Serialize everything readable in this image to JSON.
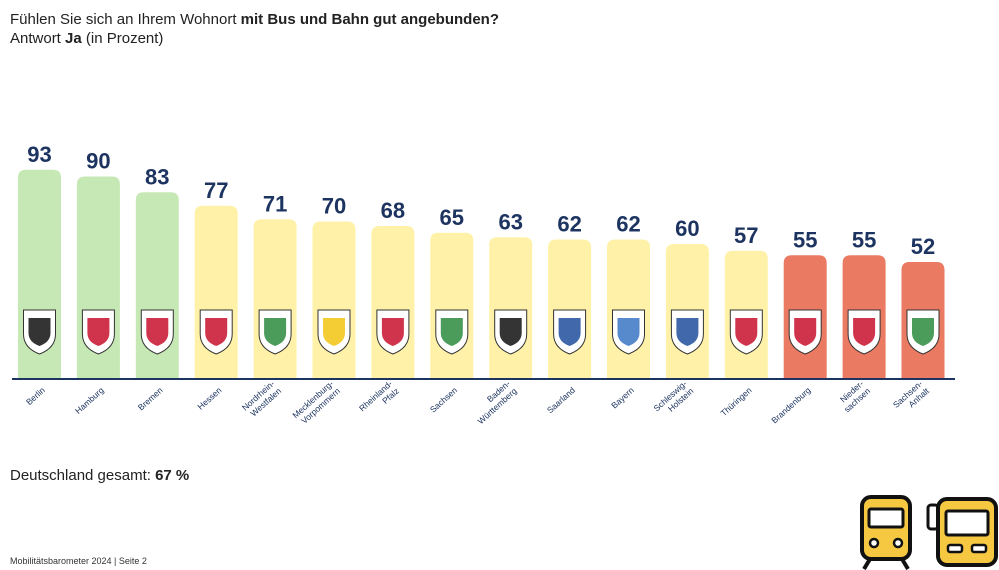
{
  "header": {
    "question_prefix": "Fühlen Sie sich an Ihrem Wohnort ",
    "question_bold": "mit Bus und Bahn gut angebunden?",
    "subtitle_prefix": "Antwort ",
    "subtitle_bold": "Ja",
    "subtitle_suffix": " (in Prozent)"
  },
  "total": {
    "label": "Deutschland gesamt: ",
    "value": "67 %"
  },
  "footnote": "Mobilitätsbarometer 2024 | Seite 2",
  "colors": {
    "green": "#c6e8b4",
    "yellow": "#fff2a8",
    "red": "#ea7a62",
    "value_text": "#1d3461",
    "axis": "#1d3461",
    "label_text": "#1d3461"
  },
  "chart_data": {
    "type": "bar",
    "ylim": [
      0,
      100
    ],
    "grid": false,
    "categories": [
      [
        "Berlin"
      ],
      [
        "Hamburg"
      ],
      [
        "Bremen"
      ],
      [
        "Hessen"
      ],
      [
        "Nordrhein-",
        "Westfalen"
      ],
      [
        "Mecklenburg-",
        "Vorpommern"
      ],
      [
        "Rheinland-",
        "Pfalz"
      ],
      [
        "Sachsen"
      ],
      [
        "Baden-",
        "Württemberg"
      ],
      [
        "Saarland"
      ],
      [
        "Bayern"
      ],
      [
        "Schleswig-",
        "Holstein"
      ],
      [
        "Thüringen"
      ],
      [
        "Brandenburg"
      ],
      [
        "Nieder-",
        "sachsen"
      ],
      [
        "Sachsen-",
        "Anhalt"
      ]
    ],
    "values": [
      93,
      90,
      83,
      77,
      71,
      70,
      68,
      65,
      63,
      62,
      62,
      60,
      57,
      55,
      55,
      52
    ],
    "bar_color_group": [
      "green",
      "green",
      "green",
      "yellow",
      "yellow",
      "yellow",
      "yellow",
      "yellow",
      "yellow",
      "yellow",
      "yellow",
      "yellow",
      "yellow",
      "red",
      "red",
      "red"
    ],
    "bar_icons": [
      "berlin-coat-of-arms-icon",
      "hamburg-coat-of-arms-icon",
      "bremen-coat-of-arms-icon",
      "hessen-coat-of-arms-icon",
      "nrw-coat-of-arms-icon",
      "mv-coat-of-arms-icon",
      "rlp-coat-of-arms-icon",
      "sachsen-coat-of-arms-icon",
      "bw-coat-of-arms-icon",
      "saarland-coat-of-arms-icon",
      "bayern-coat-of-arms-icon",
      "sh-coat-of-arms-icon",
      "thueringen-coat-of-arms-icon",
      "brandenburg-coat-of-arms-icon",
      "niedersachsen-coat-of-arms-icon",
      "sachsen-anhalt-coat-of-arms-icon"
    ]
  },
  "decor_icons": [
    "train-icon",
    "bus-icon"
  ]
}
